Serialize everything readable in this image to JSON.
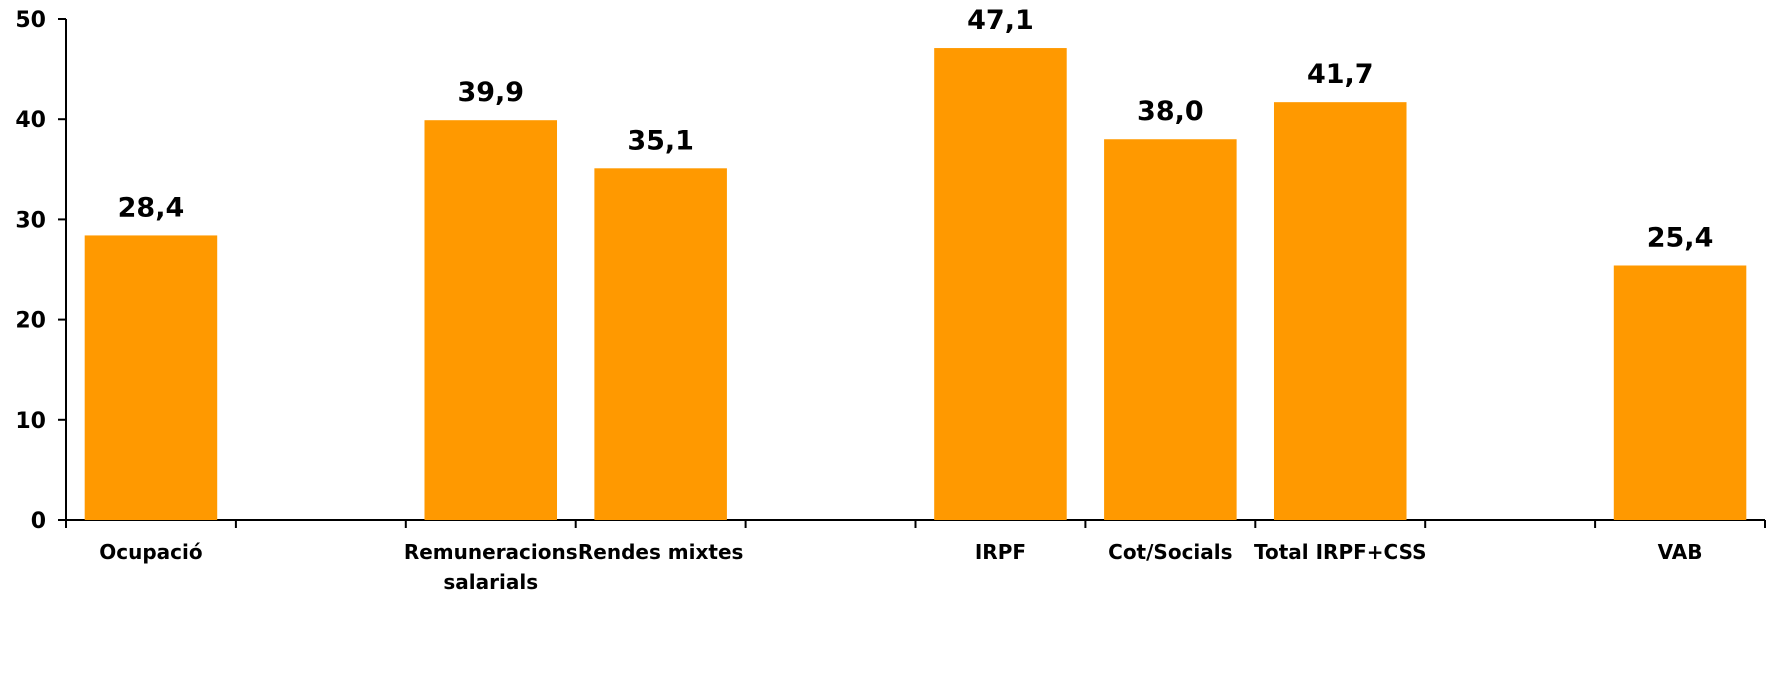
{
  "chart_data": {
    "type": "bar",
    "title": "",
    "xlabel": "",
    "ylabel": "",
    "ylim": [
      0,
      50
    ],
    "yticks": [
      "0",
      "10",
      "20",
      "30",
      "40",
      "50"
    ],
    "grid": false,
    "bar_color": "#FF9900",
    "categories": [
      {
        "label": [
          "Ocupació"
        ],
        "value": 28.4,
        "display": "28,4"
      },
      {
        "label": [],
        "value": null,
        "display": ""
      },
      {
        "label": [
          "Remuneracions",
          "salarials"
        ],
        "value": 39.9,
        "display": "39,9"
      },
      {
        "label": [
          "Rendes mixtes"
        ],
        "value": 35.1,
        "display": "35,1"
      },
      {
        "label": [],
        "value": null,
        "display": ""
      },
      {
        "label": [
          "IRPF"
        ],
        "value": 47.1,
        "display": "47,1"
      },
      {
        "label": [
          "Cot/Socials"
        ],
        "value": 38.0,
        "display": "38,0"
      },
      {
        "label": [
          "Total IRPF+CSS"
        ],
        "value": 41.7,
        "display": "41,7"
      },
      {
        "label": [],
        "value": null,
        "display": ""
      },
      {
        "label": [
          "VAB"
        ],
        "value": 25.4,
        "display": "25,4"
      }
    ]
  }
}
